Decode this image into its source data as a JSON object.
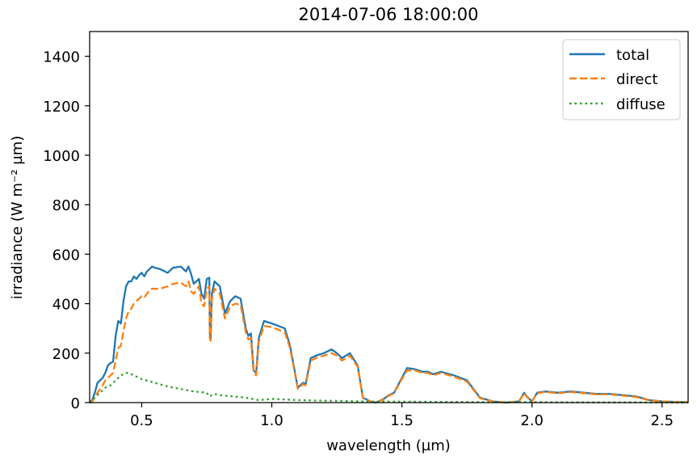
{
  "chart_data": {
    "type": "line",
    "title": "2014-07-06 18:00:00",
    "xlabel": "wavelength (µm)",
    "ylabel": "irradiance (W m⁻² µm)",
    "xlim": [
      0.3,
      2.6
    ],
    "ylim": [
      0,
      1500
    ],
    "xticks": [
      "0.5",
      "1.0",
      "1.5",
      "2.0",
      "2.5"
    ],
    "xtick_values": [
      0.5,
      1.0,
      1.5,
      2.0,
      2.5
    ],
    "yticks": [
      "0",
      "200",
      "400",
      "600",
      "800",
      "1000",
      "1200",
      "1400"
    ],
    "ytick_values": [
      0,
      200,
      400,
      600,
      800,
      1000,
      1200,
      1400
    ],
    "grid": false,
    "legend_position": "top-right",
    "series": [
      {
        "name": "total",
        "color": "#1f77b4",
        "style": "solid",
        "x": [
          0.3,
          0.31,
          0.32,
          0.33,
          0.34,
          0.35,
          0.36,
          0.37,
          0.38,
          0.39,
          0.4,
          0.41,
          0.42,
          0.43,
          0.44,
          0.45,
          0.46,
          0.47,
          0.48,
          0.49,
          0.5,
          0.51,
          0.52,
          0.53,
          0.54,
          0.55,
          0.57,
          0.6,
          0.62,
          0.65,
          0.67,
          0.68,
          0.69,
          0.7,
          0.72,
          0.73,
          0.74,
          0.75,
          0.76,
          0.762,
          0.765,
          0.77,
          0.78,
          0.8,
          0.82,
          0.84,
          0.86,
          0.88,
          0.9,
          0.91,
          0.92,
          0.93,
          0.94,
          0.95,
          0.97,
          1.0,
          1.05,
          1.07,
          1.1,
          1.12,
          1.13,
          1.15,
          1.17,
          1.2,
          1.23,
          1.25,
          1.27,
          1.3,
          1.33,
          1.35,
          1.38,
          1.4,
          1.43,
          1.45,
          1.47,
          1.5,
          1.52,
          1.55,
          1.58,
          1.6,
          1.62,
          1.65,
          1.7,
          1.75,
          1.8,
          1.85,
          1.9,
          1.95,
          1.97,
          1.98,
          2.0,
          2.02,
          2.05,
          2.1,
          2.15,
          2.2,
          2.25,
          2.3,
          2.35,
          2.4,
          2.45,
          2.5,
          2.55,
          2.6
        ],
        "values": [
          0,
          10,
          40,
          80,
          90,
          100,
          120,
          150,
          160,
          165,
          270,
          330,
          320,
          410,
          470,
          490,
          490,
          510,
          500,
          515,
          525,
          510,
          530,
          540,
          550,
          545,
          540,
          525,
          545,
          550,
          530,
          550,
          520,
          480,
          500,
          440,
          420,
          500,
          505,
          280,
          260,
          440,
          490,
          470,
          360,
          410,
          430,
          420,
          300,
          270,
          280,
          130,
          120,
          260,
          330,
          320,
          300,
          230,
          60,
          80,
          75,
          180,
          190,
          200,
          215,
          200,
          180,
          200,
          150,
          20,
          5,
          0,
          15,
          30,
          40,
          100,
          140,
          135,
          125,
          125,
          115,
          125,
          110,
          90,
          20,
          5,
          0,
          5,
          40,
          25,
          5,
          40,
          45,
          40,
          45,
          40,
          35,
          35,
          30,
          25,
          10,
          5,
          3,
          2
        ]
      },
      {
        "name": "direct",
        "color": "#ff7f0e",
        "style": "dashed",
        "x": [
          0.3,
          0.31,
          0.32,
          0.33,
          0.34,
          0.35,
          0.36,
          0.37,
          0.38,
          0.39,
          0.4,
          0.41,
          0.42,
          0.43,
          0.44,
          0.45,
          0.46,
          0.47,
          0.48,
          0.49,
          0.5,
          0.51,
          0.52,
          0.53,
          0.54,
          0.55,
          0.57,
          0.6,
          0.62,
          0.65,
          0.67,
          0.68,
          0.69,
          0.7,
          0.72,
          0.73,
          0.74,
          0.75,
          0.76,
          0.762,
          0.765,
          0.77,
          0.78,
          0.8,
          0.82,
          0.84,
          0.86,
          0.88,
          0.9,
          0.91,
          0.92,
          0.93,
          0.94,
          0.95,
          0.97,
          1.0,
          1.05,
          1.07,
          1.1,
          1.12,
          1.13,
          1.15,
          1.17,
          1.2,
          1.23,
          1.25,
          1.27,
          1.3,
          1.33,
          1.35,
          1.38,
          1.4,
          1.43,
          1.45,
          1.47,
          1.5,
          1.52,
          1.55,
          1.58,
          1.6,
          1.62,
          1.65,
          1.7,
          1.75,
          1.8,
          1.85,
          1.9,
          1.95,
          1.97,
          1.98,
          2.0,
          2.02,
          2.05,
          2.1,
          2.15,
          2.2,
          2.25,
          2.3,
          2.35,
          2.4,
          2.45,
          2.5,
          2.55,
          2.6
        ],
        "values": [
          0,
          5,
          20,
          40,
          55,
          70,
          90,
          100,
          110,
          120,
          170,
          220,
          230,
          290,
          340,
          370,
          380,
          400,
          410,
          420,
          430,
          425,
          440,
          455,
          460,
          460,
          460,
          470,
          480,
          485,
          470,
          490,
          450,
          440,
          470,
          400,
          390,
          460,
          470,
          260,
          250,
          420,
          460,
          440,
          340,
          390,
          400,
          395,
          285,
          255,
          260,
          120,
          110,
          245,
          310,
          305,
          285,
          220,
          55,
          75,
          70,
          170,
          180,
          190,
          200,
          190,
          170,
          190,
          145,
          18,
          5,
          0,
          13,
          28,
          38,
          95,
          130,
          130,
          120,
          120,
          110,
          120,
          105,
          85,
          18,
          5,
          0,
          5,
          38,
          23,
          5,
          38,
          43,
          38,
          43,
          38,
          33,
          33,
          28,
          23,
          9,
          5,
          3,
          2
        ]
      },
      {
        "name": "diffuse",
        "color": "#2ca02c",
        "style": "dotted",
        "x": [
          0.3,
          0.32,
          0.34,
          0.36,
          0.38,
          0.4,
          0.42,
          0.44,
          0.45,
          0.46,
          0.48,
          0.5,
          0.55,
          0.6,
          0.65,
          0.7,
          0.75,
          0.76,
          0.78,
          0.8,
          0.85,
          0.9,
          0.95,
          1.0,
          1.1,
          1.2,
          1.3,
          1.4,
          1.5,
          1.6,
          1.7,
          1.8,
          1.9,
          2.0,
          2.2,
          2.4,
          2.6
        ],
        "values": [
          0,
          20,
          40,
          60,
          70,
          90,
          110,
          120,
          120,
          115,
          105,
          95,
          80,
          65,
          55,
          45,
          40,
          25,
          35,
          30,
          25,
          20,
          10,
          15,
          10,
          8,
          6,
          4,
          4,
          3,
          3,
          2,
          2,
          2,
          1,
          1,
          0
        ]
      }
    ]
  }
}
